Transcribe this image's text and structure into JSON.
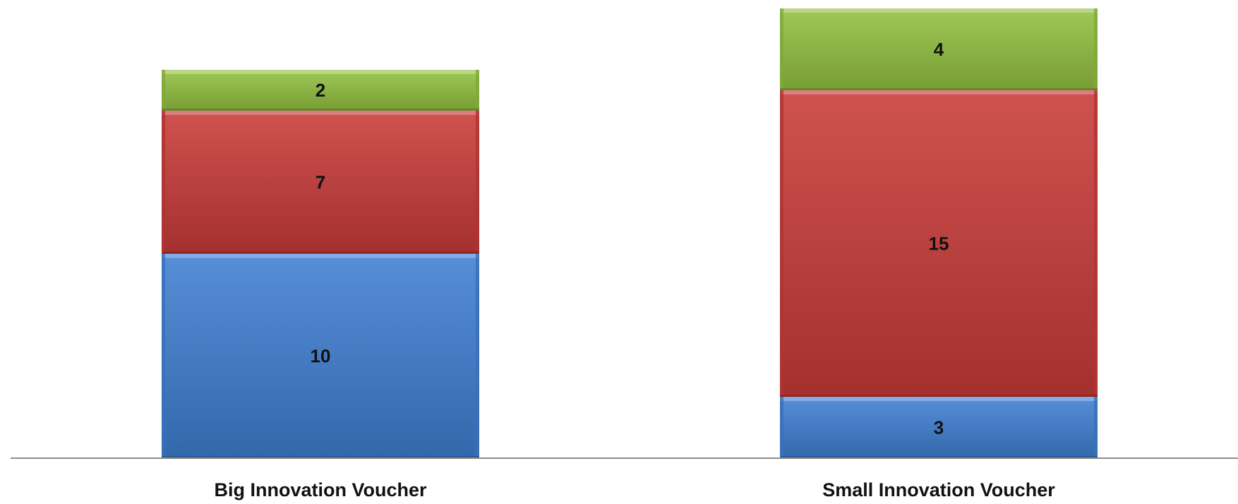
{
  "chart_data": {
    "type": "bar",
    "stacked": true,
    "categories": [
      "Big Innovation Voucher",
      "Small Innovation Voucher"
    ],
    "series": [
      {
        "values": [
          10,
          3
        ],
        "color": "#3f7fd2"
      },
      {
        "values": [
          7,
          15
        ],
        "color": "#c83a38"
      },
      {
        "values": [
          2,
          4
        ],
        "color": "#92c040"
      }
    ],
    "data_labels": true,
    "ylim": [
      0,
      22
    ],
    "grid": false,
    "legend": "none",
    "title": "",
    "xlabel": "",
    "ylabel": ""
  }
}
